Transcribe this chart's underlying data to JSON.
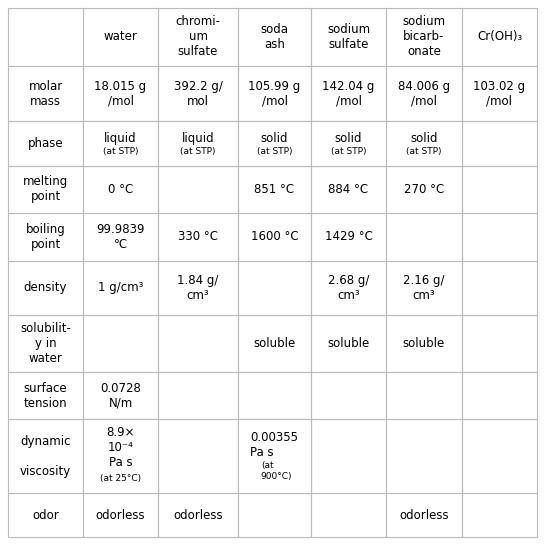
{
  "col_headers": [
    "",
    "water",
    "chromi-\num\nsulfate",
    "soda\nash",
    "sodium\nsulfate",
    "sodium\nbicarb-\nonate",
    "Cr(OH)₃"
  ],
  "rows": [
    {
      "label": "molar\nmass",
      "values": [
        "18.015 g\n/mol",
        "392.2 g/\nmol",
        "105.99 g\n/mol",
        "142.04 g\n/mol",
        "84.006 g\n/mol",
        "103.02 g\n/mol"
      ]
    },
    {
      "label": "phase",
      "values": [
        {
          "main": "liquid",
          "sub": "(at STP)"
        },
        {
          "main": "liquid",
          "sub": "(at STP)"
        },
        {
          "main": "solid",
          "sub": "(at STP)"
        },
        {
          "main": "solid",
          "sub": "(at STP)"
        },
        {
          "main": "solid",
          "sub": "(at STP)"
        },
        ""
      ]
    },
    {
      "label": "melting\npoint",
      "values": [
        "0 °C",
        "",
        "851 °C",
        "884 °C",
        "270 °C",
        ""
      ]
    },
    {
      "label": "boiling\npoint",
      "values": [
        "99.9839\n°C",
        "330 °C",
        "1600 °C",
        "1429 °C",
        "",
        ""
      ]
    },
    {
      "label": "density",
      "values": [
        "1 g/cm³",
        "1.84 g/\ncm³",
        "",
        "2.68 g/\ncm³",
        "2.16 g/\ncm³",
        ""
      ]
    },
    {
      "label": "solubilit-\ny in\nwater",
      "values": [
        "",
        "",
        "soluble",
        "soluble",
        "soluble",
        ""
      ]
    },
    {
      "label": "surface\ntension",
      "values": [
        "0.0728\nN/m",
        "",
        "",
        "",
        "",
        ""
      ]
    },
    {
      "label": "dynamic\n\nviscosity",
      "values": [
        {
          "main": "8.9×\n10⁻⁴\nPa s",
          "sub": "(at 25°C)"
        },
        "",
        {
          "main": "0.00355\nPa s",
          "sub": "(at\n900°C)"
        },
        "",
        "",
        ""
      ]
    },
    {
      "label": "odor",
      "values": [
        "odorless",
        "odorless",
        "",
        "",
        "odorless",
        ""
      ]
    }
  ],
  "bg_color": "#ffffff",
  "line_color": "#bbbbbb",
  "text_color": "#000000",
  "main_fontsize": 8.5,
  "sub_fontsize": 6.5,
  "label_fontsize": 8.5,
  "header_fontsize": 8.5
}
